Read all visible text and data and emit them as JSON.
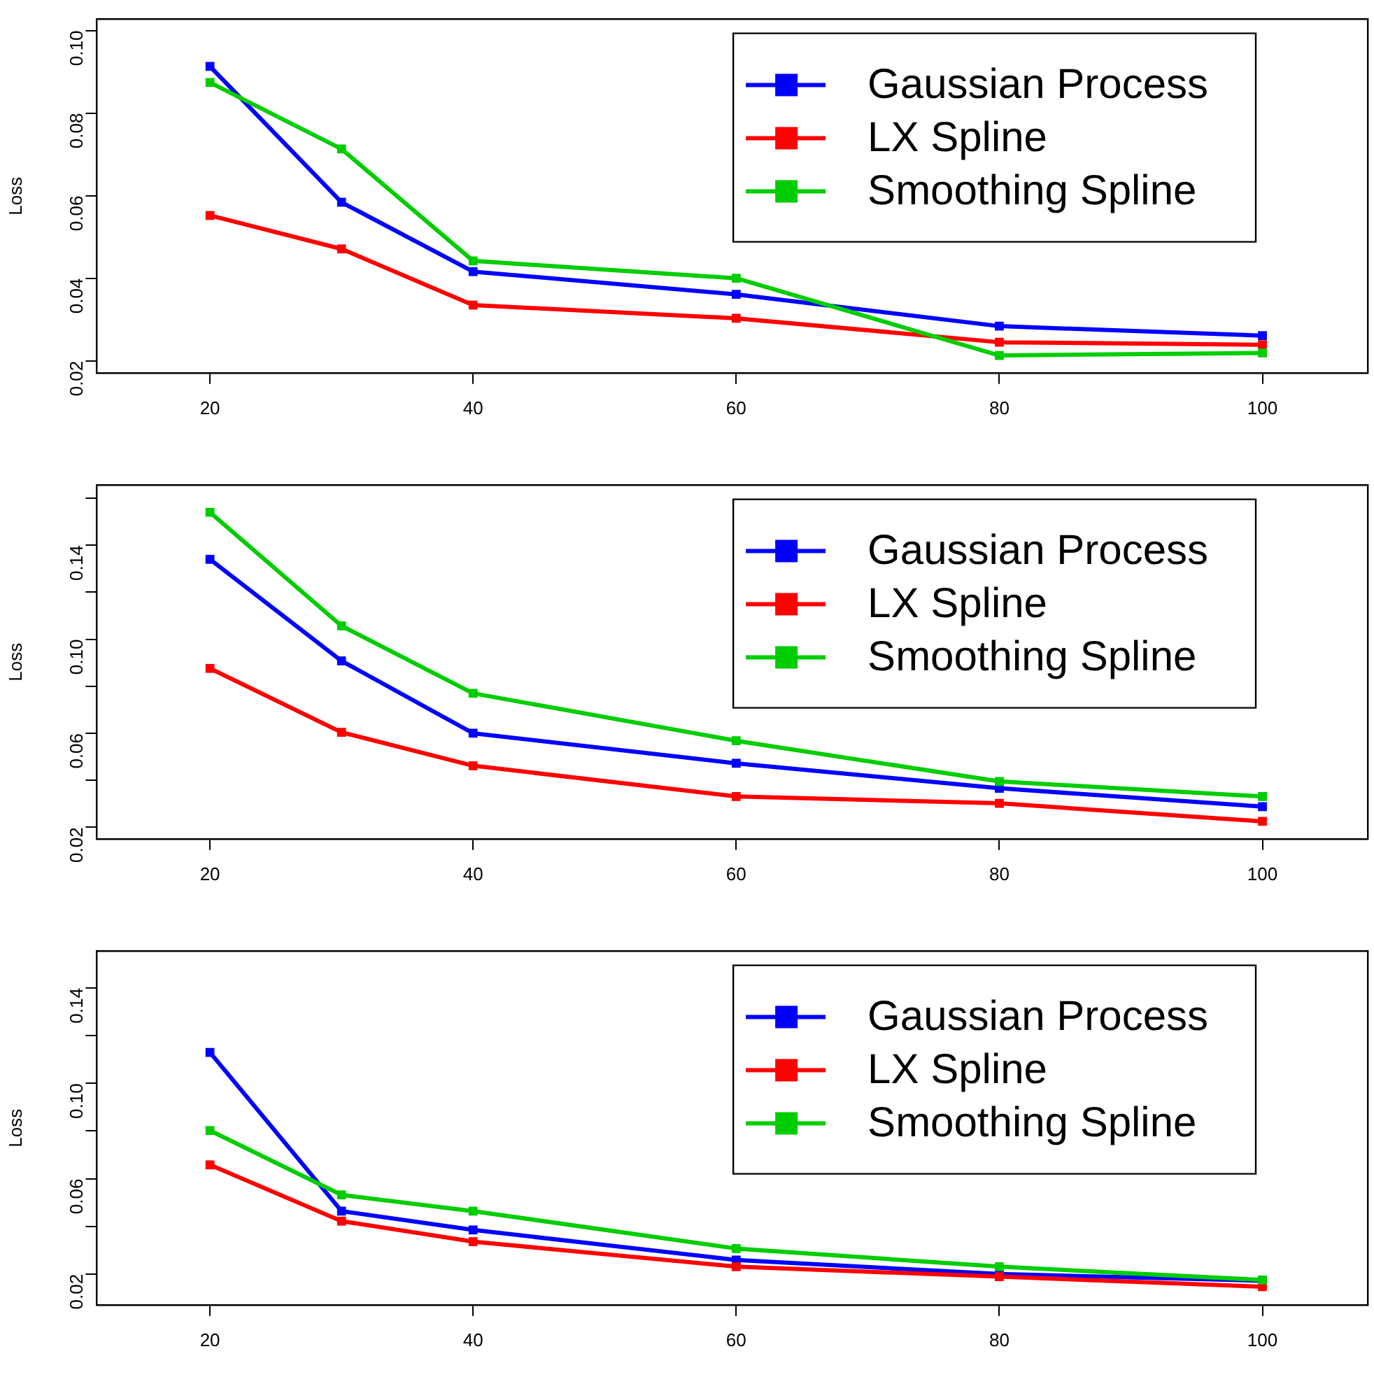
{
  "chart_data": [
    {
      "type": "line",
      "ylabel": "Loss",
      "legend": "top right",
      "marker": "square",
      "line_style": "solid",
      "grid": false,
      "x": [
        20,
        30,
        40,
        60,
        80,
        100
      ],
      "xlim": [
        11.4,
        108
      ],
      "xticks": [
        20,
        40,
        60,
        80,
        100
      ],
      "ylim": [
        0.0171,
        0.1027
      ],
      "yticks": [
        0.02,
        0.04,
        0.06,
        0.08,
        {
          "value": 0.1,
          "label": "0.10"
        }
      ],
      "series": [
        {
          "name": "Gaussian Process",
          "color": "#0000ff",
          "values": [
            0.0913,
            0.0584,
            0.0416,
            0.0361,
            0.0284,
            0.0261
          ]
        },
        {
          "name": "LX Spline",
          "color": "#ff0000",
          "values": [
            0.0552,
            0.0471,
            0.0335,
            0.0303,
            0.0245,
            0.0239
          ]
        },
        {
          "name": "Smoothing Spline",
          "color": "#00cd00",
          "values": [
            0.0874,
            0.0713,
            0.0442,
            0.04,
            0.0213,
            0.0219
          ]
        }
      ]
    },
    {
      "type": "line",
      "ylabel": "Loss",
      "legend": "top right",
      "marker": "square",
      "line_style": "solid",
      "grid": false,
      "x": [
        20,
        30,
        40,
        60,
        80,
        100
      ],
      "xlim": [
        11.4,
        108
      ],
      "xticks": [
        20,
        40,
        60,
        80,
        100
      ],
      "ylim": [
        0.0151,
        0.1655
      ],
      "yticks": [
        0.02,
        {
          "value": 0.04,
          "label": null
        },
        0.06,
        {
          "value": 0.08,
          "label": null
        },
        {
          "value": 0.1,
          "label": "0.10"
        },
        {
          "value": 0.12,
          "label": null
        },
        0.14,
        {
          "value": 0.16,
          "label": null
        }
      ],
      "series": [
        {
          "name": "Gaussian Process",
          "color": "#0000ff",
          "values": [
            0.134,
            0.0908,
            0.06,
            0.0472,
            0.0366,
            0.0288
          ]
        },
        {
          "name": "LX Spline",
          "color": "#ff0000",
          "values": [
            0.0876,
            0.0604,
            0.0462,
            0.0331,
            0.0302,
            0.0225
          ]
        },
        {
          "name": "Smoothing Spline",
          "color": "#00cd00",
          "values": [
            0.154,
            0.1057,
            0.077,
            0.0568,
            0.0395,
            0.0331
          ]
        }
      ]
    },
    {
      "type": "line",
      "ylabel": "Loss",
      "legend": "top right",
      "marker": "square",
      "line_style": "solid",
      "grid": false,
      "x": [
        20,
        30,
        40,
        60,
        80,
        100
      ],
      "xlim": [
        11.4,
        108
      ],
      "xticks": [
        20,
        40,
        60,
        80,
        100
      ],
      "ylim": [
        0.0071,
        0.1554
      ],
      "yticks": [
        0.02,
        {
          "value": 0.04,
          "label": null
        },
        0.06,
        {
          "value": 0.08,
          "label": null
        },
        {
          "value": 0.1,
          "label": "0.10"
        },
        {
          "value": 0.12,
          "label": null
        },
        0.14
      ],
      "series": [
        {
          "name": "Gaussian Process",
          "color": "#0000ff",
          "values": [
            0.113,
            0.0464,
            0.0385,
            0.0259,
            0.02,
            0.0172
          ]
        },
        {
          "name": "LX Spline",
          "color": "#ff0000",
          "values": [
            0.0658,
            0.0422,
            0.0336,
            0.0231,
            0.0189,
            0.0147
          ]
        },
        {
          "name": "Smoothing Spline",
          "color": "#00cd00",
          "values": [
            0.0802,
            0.0532,
            0.0464,
            0.0307,
            0.0231,
            0.0175
          ]
        }
      ]
    }
  ]
}
